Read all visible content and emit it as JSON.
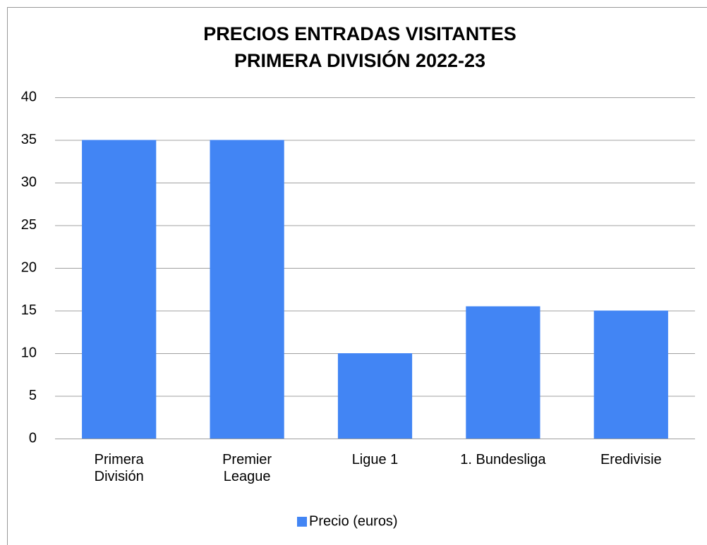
{
  "chart_data": {
    "type": "bar",
    "title": "PRECIOS ENTRADAS VISITANTES",
    "subtitle": "PRIMERA DIVISIÓN 2022-23",
    "categories": [
      "Primera División",
      "Premier League",
      "Ligue 1",
      "1. Bundesliga",
      "Eredivisie"
    ],
    "series": [
      {
        "name": "Precio (euros)",
        "color": "#4285f4",
        "values": [
          35,
          35,
          10,
          15.5,
          15
        ]
      }
    ],
    "ylim": [
      0,
      40
    ],
    "yticks": [
      0,
      5,
      10,
      15,
      20,
      25,
      30,
      35,
      40
    ],
    "grid": true,
    "legend": "bottom"
  }
}
